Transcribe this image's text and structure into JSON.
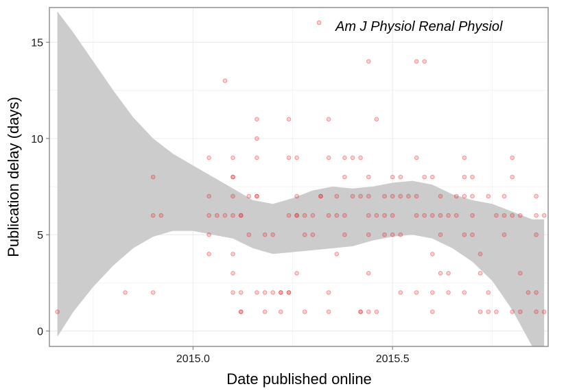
{
  "chart_data": {
    "type": "scatter",
    "xlabel": "Date published online",
    "ylabel": "Publication delay (days)",
    "xlim": [
      2014.64,
      2015.89
    ],
    "ylim": [
      -0.8,
      16.8
    ],
    "x_ticks": [
      2015.0,
      2015.5
    ],
    "x_tick_labels": [
      "2015.0",
      "2015.5"
    ],
    "y_ticks": [
      0,
      5,
      10,
      15
    ],
    "y_tick_labels": [
      "0",
      "5",
      "10",
      "15"
    ],
    "grid": true,
    "legend_position": "top-right",
    "colors": {
      "points": "#e41a1c",
      "band": "#cccccc",
      "axis": "#7f7f7f",
      "grid": "#ebebeb"
    },
    "series": [
      {
        "name": "Am J Physiol Renal Physiol",
        "style": "points",
        "points": [
          [
            2014.66,
            1
          ],
          [
            2014.83,
            2
          ],
          [
            2014.9,
            2
          ],
          [
            2014.9,
            6
          ],
          [
            2014.9,
            8
          ],
          [
            2014.92,
            6
          ],
          [
            2015.04,
            4
          ],
          [
            2015.04,
            5
          ],
          [
            2015.04,
            6
          ],
          [
            2015.04,
            7
          ],
          [
            2015.04,
            9
          ],
          [
            2015.06,
            6
          ],
          [
            2015.08,
            6
          ],
          [
            2015.08,
            13
          ],
          [
            2015.1,
            6
          ],
          [
            2015.1,
            7
          ],
          [
            2015.1,
            3
          ],
          [
            2015.1,
            4
          ],
          [
            2015.1,
            9
          ],
          [
            2015.1,
            2
          ],
          [
            2015.1,
            8
          ],
          [
            2015.1,
            8
          ],
          [
            2015.12,
            6
          ],
          [
            2015.12,
            6
          ],
          [
            2015.12,
            1
          ],
          [
            2015.12,
            1
          ],
          [
            2015.12,
            2
          ],
          [
            2015.14,
            5
          ],
          [
            2015.14,
            7
          ],
          [
            2015.16,
            7
          ],
          [
            2015.16,
            9
          ],
          [
            2015.16,
            10
          ],
          [
            2015.16,
            11
          ],
          [
            2015.16,
            7
          ],
          [
            2015.16,
            2
          ],
          [
            2015.18,
            1
          ],
          [
            2015.18,
            2
          ],
          [
            2015.18,
            5
          ],
          [
            2015.2,
            5
          ],
          [
            2015.2,
            2
          ],
          [
            2015.22,
            1
          ],
          [
            2015.22,
            2
          ],
          [
            2015.22,
            2
          ],
          [
            2015.24,
            2
          ],
          [
            2015.24,
            9
          ],
          [
            2015.24,
            11
          ],
          [
            2015.24,
            6
          ],
          [
            2015.24,
            2
          ],
          [
            2015.26,
            3
          ],
          [
            2015.26,
            6
          ],
          [
            2015.26,
            6
          ],
          [
            2015.26,
            7
          ],
          [
            2015.26,
            9
          ],
          [
            2015.28,
            5
          ],
          [
            2015.28,
            1
          ],
          [
            2015.28,
            6
          ],
          [
            2015.3,
            5
          ],
          [
            2015.3,
            6
          ],
          [
            2015.32,
            7
          ],
          [
            2015.32,
            7
          ],
          [
            2015.34,
            2
          ],
          [
            2015.34,
            6
          ],
          [
            2015.34,
            9
          ],
          [
            2015.34,
            11
          ],
          [
            2015.34,
            1
          ],
          [
            2015.36,
            4
          ],
          [
            2015.36,
            6
          ],
          [
            2015.36,
            7
          ],
          [
            2015.38,
            5
          ],
          [
            2015.38,
            6
          ],
          [
            2015.38,
            8
          ],
          [
            2015.38,
            9
          ],
          [
            2015.4,
            9
          ],
          [
            2015.4,
            7
          ],
          [
            2015.42,
            1
          ],
          [
            2015.42,
            1
          ],
          [
            2015.42,
            7
          ],
          [
            2015.42,
            9
          ],
          [
            2015.44,
            5
          ],
          [
            2015.44,
            7
          ],
          [
            2015.44,
            8
          ],
          [
            2015.44,
            6
          ],
          [
            2015.44,
            3
          ],
          [
            2015.44,
            14
          ],
          [
            2015.44,
            1
          ],
          [
            2015.46,
            6
          ],
          [
            2015.46,
            11
          ],
          [
            2015.46,
            1
          ],
          [
            2015.48,
            6
          ],
          [
            2015.48,
            7
          ],
          [
            2015.48,
            5
          ],
          [
            2015.5,
            7
          ],
          [
            2015.5,
            6
          ],
          [
            2015.5,
            8
          ],
          [
            2015.5,
            5
          ],
          [
            2015.52,
            7
          ],
          [
            2015.52,
            8
          ],
          [
            2015.52,
            5
          ],
          [
            2015.52,
            2
          ],
          [
            2015.54,
            7
          ],
          [
            2015.56,
            6
          ],
          [
            2015.56,
            7
          ],
          [
            2015.56,
            9
          ],
          [
            2015.56,
            14
          ],
          [
            2015.56,
            2
          ],
          [
            2015.58,
            6
          ],
          [
            2015.58,
            8
          ],
          [
            2015.58,
            14
          ],
          [
            2015.6,
            1
          ],
          [
            2015.6,
            2
          ],
          [
            2015.6,
            4
          ],
          [
            2015.6,
            6
          ],
          [
            2015.6,
            8
          ],
          [
            2015.62,
            5
          ],
          [
            2015.62,
            6
          ],
          [
            2015.62,
            7
          ],
          [
            2015.62,
            3
          ],
          [
            2015.64,
            3
          ],
          [
            2015.64,
            6
          ],
          [
            2015.64,
            2
          ],
          [
            2015.66,
            7
          ],
          [
            2015.66,
            6
          ],
          [
            2015.68,
            5
          ],
          [
            2015.68,
            7
          ],
          [
            2015.68,
            8
          ],
          [
            2015.68,
            9
          ],
          [
            2015.68,
            2
          ],
          [
            2015.7,
            5
          ],
          [
            2015.7,
            6
          ],
          [
            2015.7,
            8
          ],
          [
            2015.7,
            7
          ],
          [
            2015.72,
            4
          ],
          [
            2015.72,
            1
          ],
          [
            2015.72,
            3
          ],
          [
            2015.74,
            1
          ],
          [
            2015.74,
            7
          ],
          [
            2015.74,
            2
          ],
          [
            2015.76,
            6
          ],
          [
            2015.76,
            1
          ],
          [
            2015.78,
            5
          ],
          [
            2015.78,
            6
          ],
          [
            2015.78,
            7
          ],
          [
            2015.8,
            1
          ],
          [
            2015.8,
            6
          ],
          [
            2015.8,
            9
          ],
          [
            2015.8,
            8
          ],
          [
            2015.82,
            1
          ],
          [
            2015.82,
            3
          ],
          [
            2015.82,
            6
          ],
          [
            2015.84,
            2
          ],
          [
            2015.86,
            5
          ],
          [
            2015.86,
            6
          ],
          [
            2015.86,
            7
          ],
          [
            2015.86,
            1
          ],
          [
            2015.86,
            2
          ],
          [
            2015.88,
            6
          ],
          [
            2015.88,
            1
          ]
        ]
      }
    ],
    "smooth_band": {
      "x": [
        2014.66,
        2014.7,
        2014.75,
        2014.8,
        2014.85,
        2014.9,
        2014.95,
        2015.0,
        2015.05,
        2015.1,
        2015.15,
        2015.2,
        2015.25,
        2015.3,
        2015.35,
        2015.4,
        2015.45,
        2015.5,
        2015.55,
        2015.6,
        2015.65,
        2015.7,
        2015.75,
        2015.8,
        2015.85,
        2015.88
      ],
      "upper": [
        16.6,
        15.5,
        14.0,
        12.5,
        11.1,
        10.0,
        9.2,
        8.6,
        8.0,
        7.4,
        6.8,
        6.6,
        6.9,
        7.3,
        7.5,
        7.4,
        7.5,
        7.7,
        7.8,
        7.6,
        7.1,
        6.8,
        6.6,
        6.2,
        5.8,
        5.8
      ],
      "lower": [
        -0.3,
        1.0,
        2.3,
        3.4,
        4.3,
        4.9,
        5.2,
        5.2,
        5.0,
        4.8,
        4.3,
        4.0,
        4.1,
        4.2,
        4.3,
        4.4,
        4.7,
        4.9,
        5.0,
        4.8,
        4.3,
        3.6,
        2.6,
        1.1,
        -0.8,
        -0.8
      ]
    }
  }
}
